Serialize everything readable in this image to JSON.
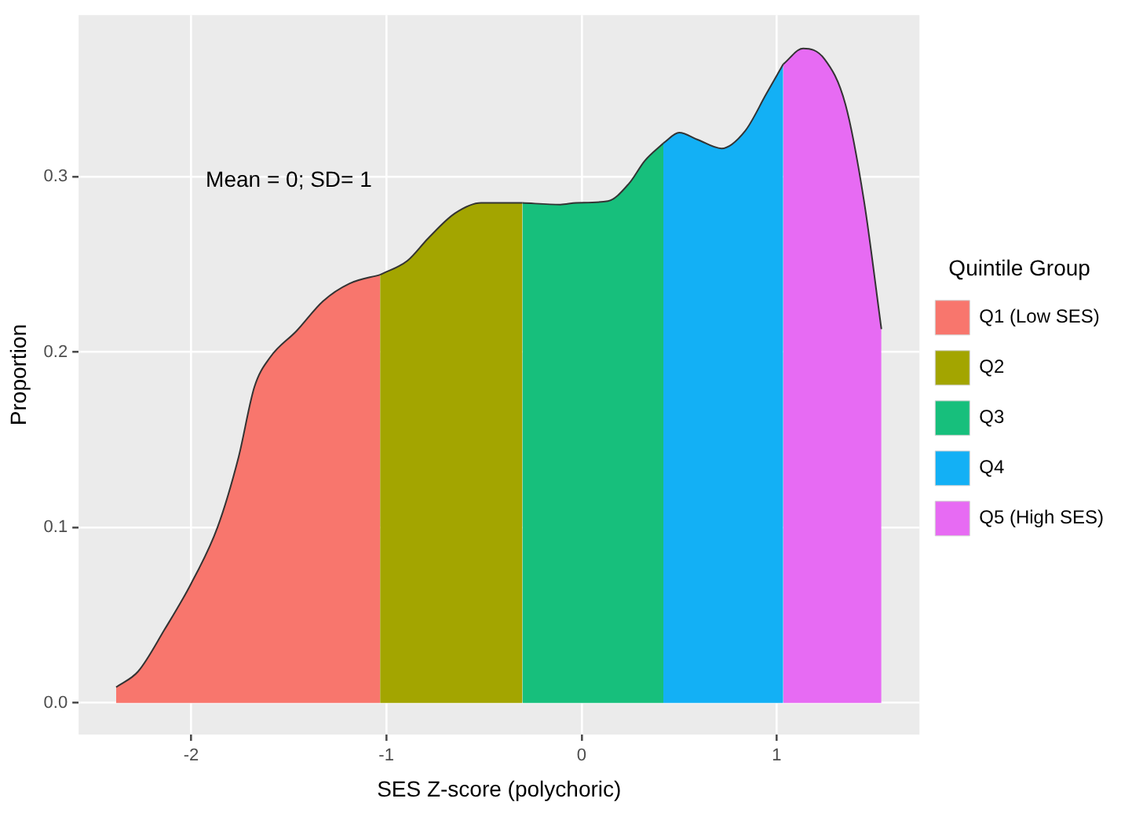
{
  "chart_data": {
    "type": "area",
    "xlabel": "SES Z-score (polychoric)",
    "ylabel": "Proportion",
    "legend_title": "Quintile Group",
    "annotations": [
      "Mean = 0; SD= 1"
    ],
    "xlim": [
      -2.576,
      1.731
    ],
    "ylim": [
      -0.018,
      0.392
    ],
    "xticks": [
      -2,
      -1,
      0,
      1
    ],
    "yticks": [
      {
        "value": 0,
        "label": "0.0"
      },
      0.1,
      0.2,
      0.3
    ],
    "grid": true,
    "legend": "right",
    "series": [
      {
        "name": "Q1 (Low SES)",
        "color": "#f8766d",
        "x": [
          -2.384,
          -2.271,
          -2.135,
          -2.0,
          -1.865,
          -1.757,
          -1.676,
          -1.595,
          -1.46,
          -1.324,
          -1.189,
          -1.032
        ],
        "values": [
          0.009,
          0.018,
          0.042,
          0.068,
          0.1,
          0.14,
          0.18,
          0.197,
          0.212,
          0.229,
          0.239,
          0.244
        ]
      },
      {
        "name": "Q2",
        "color": "#a3a500",
        "x": [
          -1.032,
          -0.892,
          -0.784,
          -0.649,
          -0.514,
          -0.303
        ],
        "values": [
          0.244,
          0.252,
          0.265,
          0.279,
          0.285,
          0.285
        ]
      },
      {
        "name": "Q3",
        "color": "#17bf7c",
        "x": [
          -0.303,
          -0.108,
          -0.027,
          0.135,
          0.243,
          0.324,
          0.419
        ],
        "values": [
          0.285,
          0.284,
          0.285,
          0.286,
          0.296,
          0.309,
          0.319
        ]
      },
      {
        "name": "Q4",
        "color": "#13b0f5",
        "x": [
          0.419,
          0.5,
          0.595,
          0.717,
          0.838,
          0.946,
          1.033
        ],
        "values": [
          0.319,
          0.325,
          0.321,
          0.316,
          0.326,
          0.347,
          0.364
        ]
      },
      {
        "name": "Q5 (High SES)",
        "color": "#e76bf3",
        "x": [
          1.033,
          1.135,
          1.244,
          1.352,
          1.447,
          1.536
        ],
        "values": [
          0.364,
          0.373,
          0.367,
          0.341,
          0.286,
          0.213
        ]
      }
    ]
  }
}
